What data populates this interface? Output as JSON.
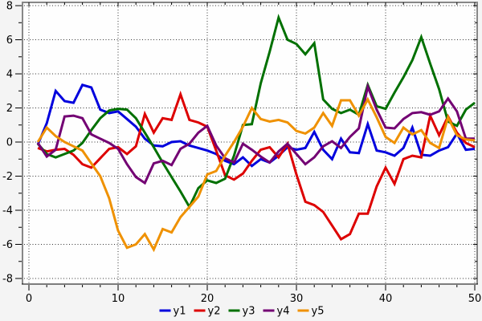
{
  "chart_data": {
    "type": "line",
    "title": "",
    "xlabel": "",
    "ylabel": "",
    "xlim": [
      -0.72,
      50.27
    ],
    "ylim": [
      -8.33,
      8.19
    ],
    "grid": "dotted",
    "legend_position": "bottom-center",
    "x_ticks": [
      {
        "value": 0,
        "label": "0"
      },
      {
        "value": 10,
        "label": "10"
      },
      {
        "value": 20,
        "label": "20"
      },
      {
        "value": 30,
        "label": "30"
      },
      {
        "value": 40,
        "label": "40"
      },
      {
        "value": 50,
        "label": "50"
      }
    ],
    "x_minor_step": 2,
    "y_ticks": [
      {
        "value": 8,
        "label": "8"
      },
      {
        "value": 6,
        "label": "6"
      },
      {
        "value": 4,
        "label": "4"
      },
      {
        "value": 2,
        "label": "2"
      },
      {
        "value": 0,
        "label": "0"
      },
      {
        "value": -2,
        "label": "-2"
      },
      {
        "value": -4,
        "label": "-4"
      },
      {
        "value": -6,
        "label": "-6"
      },
      {
        "value": -8,
        "label": "-8"
      }
    ],
    "y_minor_step": 1,
    "x": [
      1,
      2,
      3,
      4,
      5,
      6,
      7,
      8,
      9,
      10,
      11,
      12,
      13,
      14,
      15,
      16,
      17,
      18,
      19,
      20,
      21,
      22,
      23,
      24,
      25,
      26,
      27,
      28,
      29,
      30,
      31,
      32,
      33,
      34,
      35,
      36,
      37,
      38,
      39,
      40,
      41,
      42,
      43,
      44,
      45,
      46,
      47,
      48,
      49,
      50
    ],
    "series": [
      {
        "name": "y1",
        "color": "#0000dd",
        "values": [
          -0.15,
          1.1,
          3.0,
          2.4,
          2.3,
          3.35,
          3.2,
          1.9,
          1.7,
          1.8,
          1.35,
          0.9,
          0.2,
          -0.2,
          -0.25,
          0.0,
          0.05,
          -0.2,
          -0.35,
          -0.5,
          -0.7,
          -1.1,
          -1.3,
          -0.9,
          -1.4,
          -1.0,
          -1.2,
          -0.8,
          -0.3,
          -0.45,
          -0.35,
          0.6,
          -0.45,
          -1.0,
          0.2,
          -0.6,
          -0.65,
          1.05,
          -0.5,
          -0.6,
          -0.8,
          -0.35,
          0.85,
          -0.75,
          -0.8,
          -0.5,
          -0.3,
          0.5,
          -0.45,
          -0.4
        ]
      },
      {
        "name": "y2",
        "color": "#dd0000",
        "values": [
          -0.35,
          -0.55,
          -0.45,
          -0.4,
          -0.75,
          -1.3,
          -1.5,
          -0.95,
          -0.4,
          -0.3,
          -0.7,
          -0.25,
          1.65,
          0.55,
          1.4,
          1.3,
          2.8,
          1.3,
          1.15,
          0.9,
          -0.5,
          -1.95,
          -2.2,
          -1.85,
          -1.1,
          -0.45,
          -0.3,
          -0.9,
          -0.1,
          -1.9,
          -3.5,
          -3.7,
          -4.1,
          -4.9,
          -5.7,
          -5.4,
          -4.2,
          -4.2,
          -2.6,
          -1.5,
          -2.45,
          -1.0,
          -0.8,
          -0.9,
          1.55,
          0.4,
          1.5,
          0.55,
          -0.05,
          -0.3
        ]
      },
      {
        "name": "y3",
        "color": "#007000",
        "values": [
          -0.1,
          -0.7,
          -0.9,
          -0.7,
          -0.5,
          -0.05,
          0.7,
          1.4,
          1.85,
          1.95,
          1.9,
          1.4,
          0.55,
          -0.3,
          -1.2,
          -2.05,
          -2.9,
          -3.8,
          -2.7,
          -2.25,
          -2.4,
          -2.15,
          -0.8,
          1.0,
          1.05,
          3.45,
          5.3,
          7.3,
          6.0,
          5.75,
          5.15,
          5.8,
          2.5,
          1.95,
          1.7,
          1.9,
          1.6,
          3.35,
          2.1,
          1.95,
          2.9,
          3.8,
          4.8,
          6.15,
          4.6,
          3.1,
          1.2,
          0.95,
          1.9,
          2.3
        ]
      },
      {
        "name": "y4",
        "color": "#730073",
        "values": [
          -0.05,
          -0.85,
          -0.45,
          1.5,
          1.55,
          1.4,
          0.45,
          0.2,
          -0.05,
          -0.4,
          -1.3,
          -2.05,
          -2.4,
          -1.25,
          -1.1,
          -1.35,
          -0.4,
          -0.1,
          0.55,
          0.95,
          -0.2,
          -0.95,
          -1.2,
          -0.1,
          -0.45,
          -0.85,
          -1.2,
          -0.55,
          -0.1,
          -0.7,
          -1.3,
          -0.9,
          -0.25,
          0.05,
          -0.35,
          0.3,
          0.8,
          3.25,
          1.9,
          0.85,
          0.8,
          1.35,
          1.7,
          1.75,
          1.6,
          1.8,
          2.55,
          1.8,
          0.2,
          0.2
        ]
      },
      {
        "name": "y5",
        "color": "#ef9100",
        "values": [
          0.0,
          0.85,
          0.35,
          0.0,
          -0.25,
          -0.5,
          -1.25,
          -2.0,
          -3.3,
          -5.2,
          -6.2,
          -6.0,
          -5.4,
          -6.3,
          -5.1,
          -5.3,
          -4.4,
          -3.8,
          -3.2,
          -1.9,
          -1.7,
          -0.8,
          0.0,
          0.9,
          2.0,
          1.35,
          1.2,
          1.3,
          1.15,
          0.65,
          0.5,
          0.85,
          1.7,
          0.95,
          2.45,
          2.45,
          1.55,
          2.5,
          1.45,
          0.3,
          -0.05,
          0.85,
          0.45,
          0.7,
          -0.05,
          -0.35,
          1.45,
          0.4,
          0.15,
          0.1
        ]
      }
    ],
    "legend": [
      "y1",
      "y2",
      "y3",
      "y4",
      "y5"
    ]
  },
  "colors": {
    "page_bg": "#f4f4f4",
    "plot_bg": "#fefefe",
    "border_gray": "#878787",
    "axis_black": "#000000",
    "grid_dot": "#333333"
  }
}
